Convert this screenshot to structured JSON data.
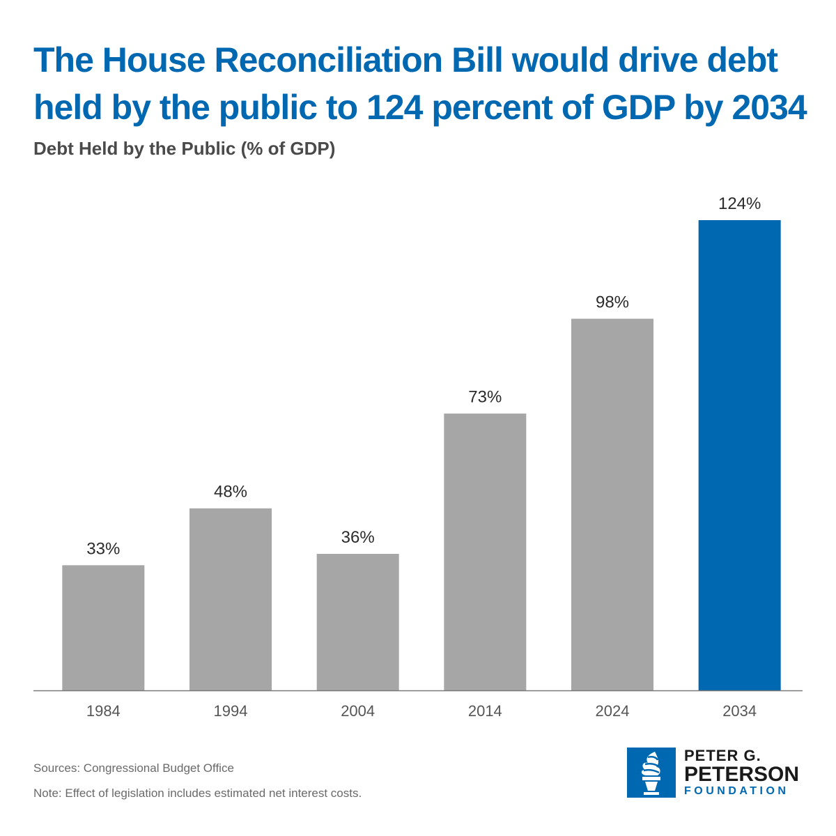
{
  "title": "The House Reconciliation Bill would drive debt held by the public to 124 percent of GDP by 2034",
  "subtitle": "Debt Held by the Public (% of GDP)",
  "chart_data": {
    "type": "bar",
    "title": "The House Reconciliation Bill would drive debt held by the public to 124 percent of GDP by 2034",
    "ylabel": "Debt Held by the Public (% of GDP)",
    "xlabel": "",
    "categories": [
      "1984",
      "1994",
      "2004",
      "2014",
      "2024",
      "2034"
    ],
    "values": [
      33,
      48,
      36,
      73,
      98,
      124
    ],
    "value_labels": [
      "33%",
      "48%",
      "36%",
      "73%",
      "98%",
      "124%"
    ],
    "ylim": [
      0,
      124
    ],
    "grid": false,
    "bar_colors": [
      "#a6a6a6",
      "#a6a6a6",
      "#a6a6a6",
      "#a6a6a6",
      "#a6a6a6",
      "#0068b1"
    ],
    "highlight_color": "#0068b1",
    "base_color": "#a6a6a6"
  },
  "footnotes": {
    "sources": "Sources: Congressional Budget Office",
    "note": "Note: Effect of legislation includes estimated net interest costs."
  },
  "logo": {
    "line1": "PETER G.",
    "line2": "PETERSON",
    "line3": "FOUNDATION",
    "icon": "torch-icon"
  }
}
